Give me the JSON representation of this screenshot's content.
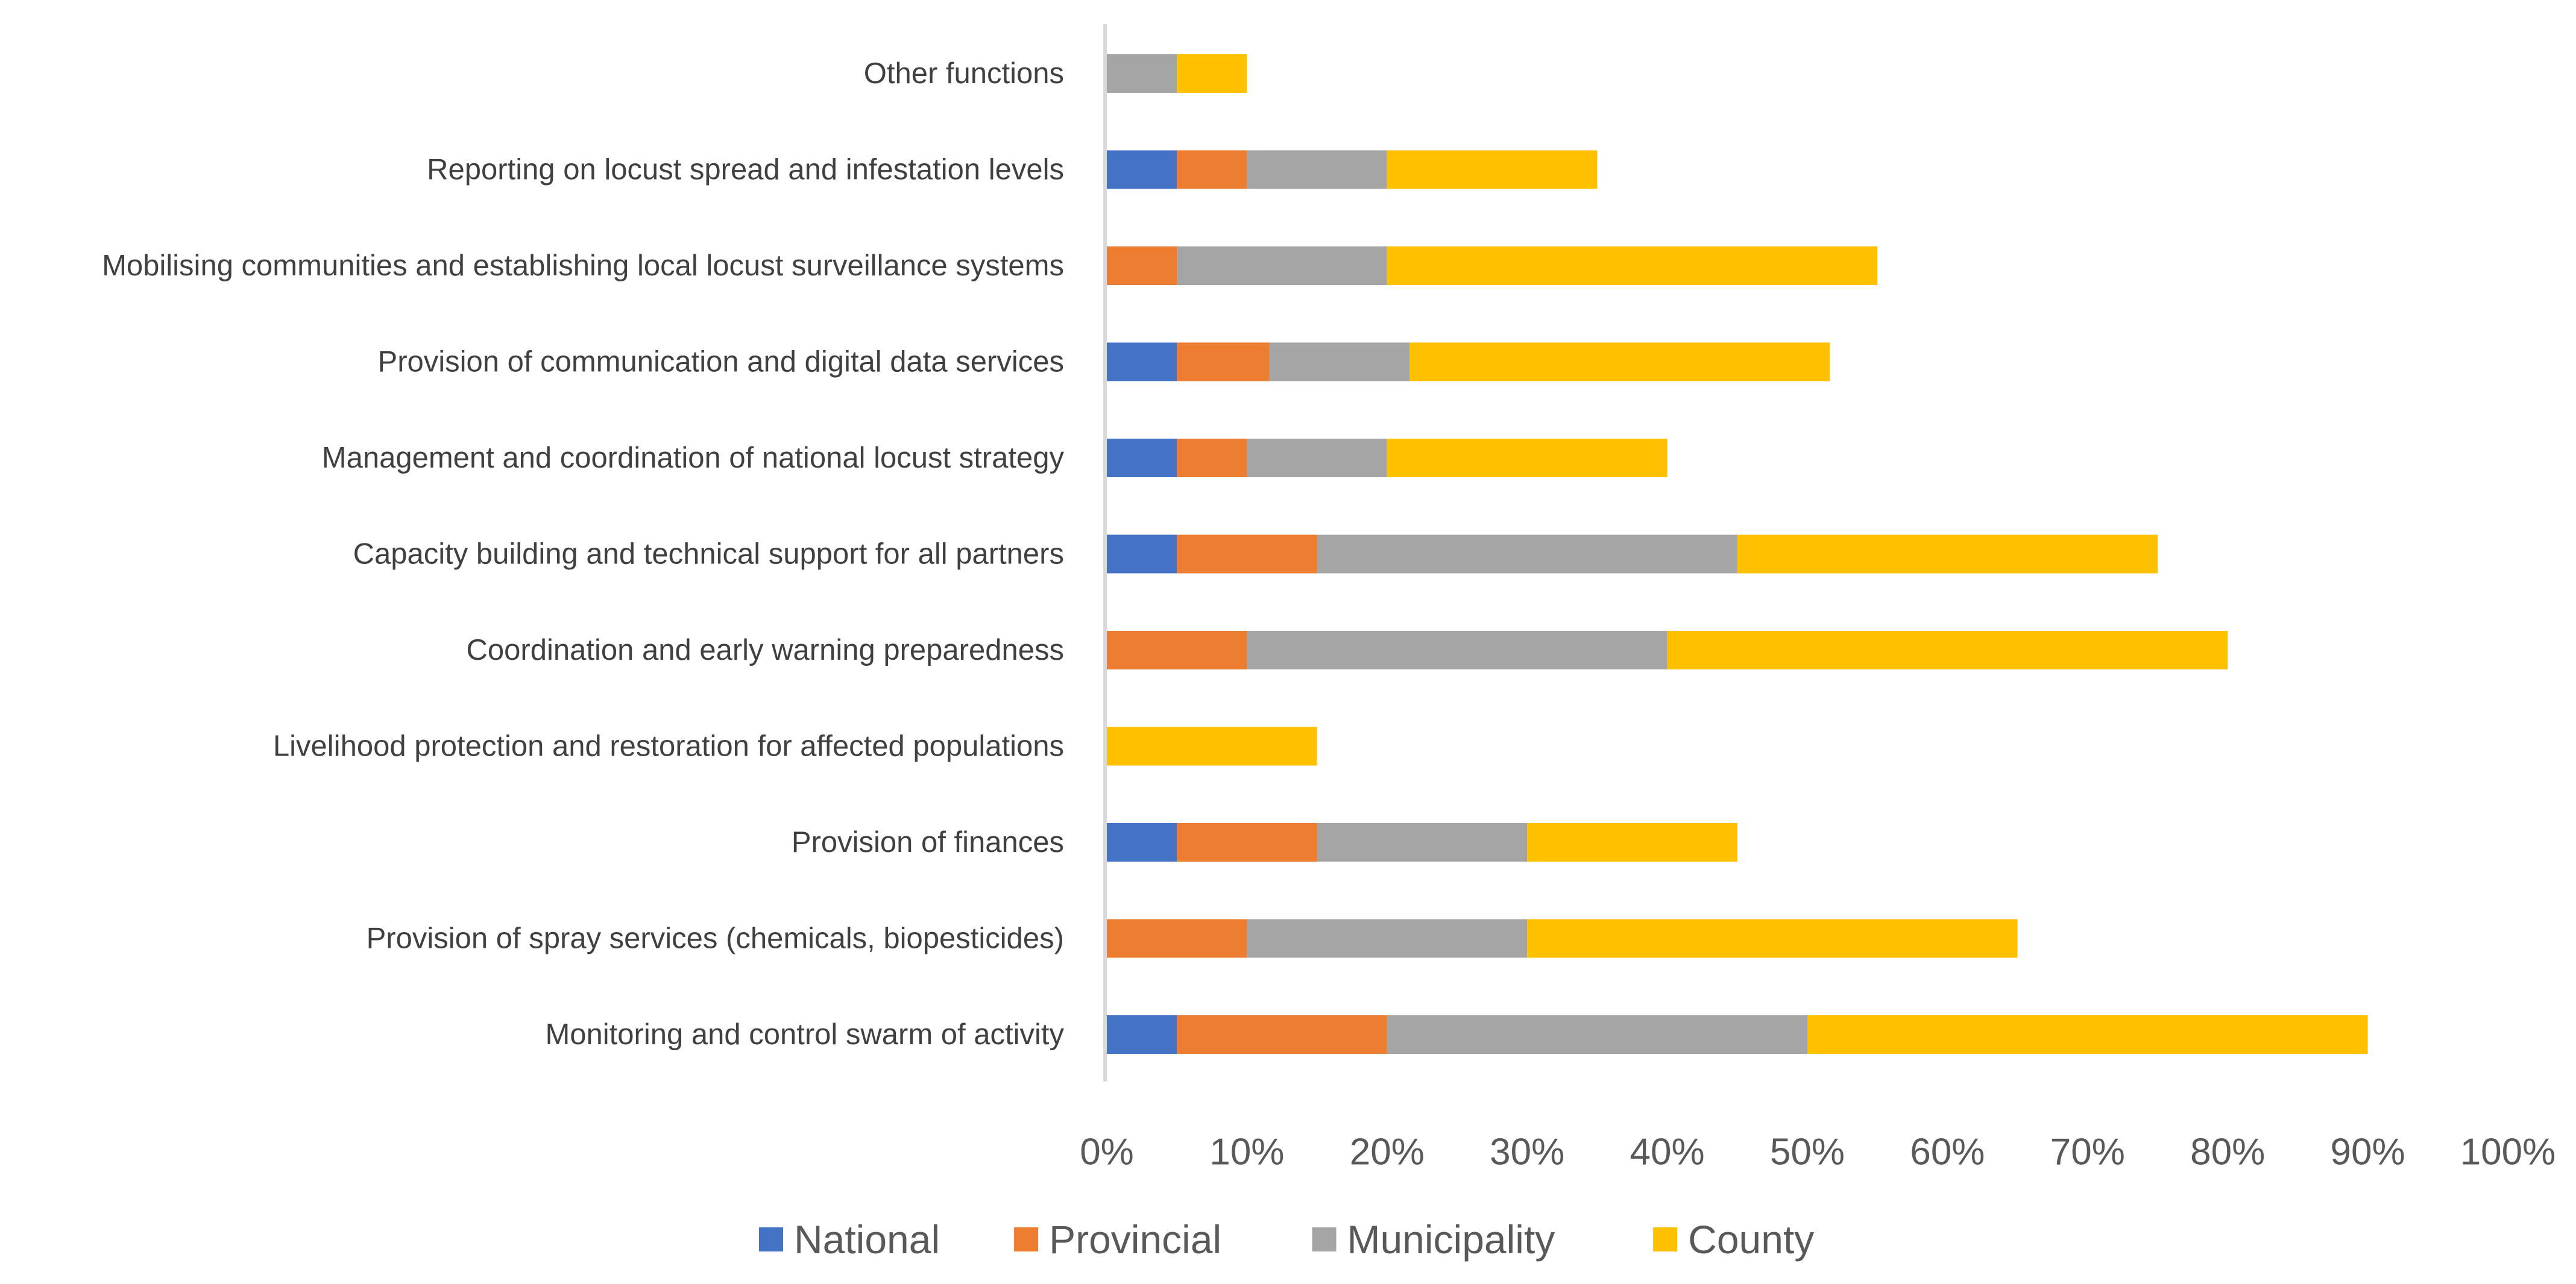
{
  "chart_data": {
    "type": "bar",
    "orientation": "horizontal",
    "stacked": true,
    "title": "",
    "xlabel": "",
    "ylabel": "",
    "xlim": [
      0,
      100
    ],
    "x_ticks": [
      0,
      10,
      20,
      30,
      40,
      50,
      60,
      70,
      80,
      90,
      100
    ],
    "x_tick_labels": [
      "0%",
      "10%",
      "20%",
      "30%",
      "40%",
      "50%",
      "60%",
      "70%",
      "80%",
      "90%",
      "100%"
    ],
    "grid": false,
    "legend_position": "bottom",
    "categories": [
      "Other functions",
      "Reporting on locust spread and infestation levels",
      "Mobilising communities and establishing local locust surveillance systems",
      "Provision of communication and digital data services",
      "Management and coordination of national locust  strategy",
      "Capacity building and technical support for all partners",
      "Coordination and early warning preparedness",
      "Livelihood protection and restoration for affected populations",
      "Provision of finances",
      "Provision of spray services (chemicals, biopesticides)",
      "Monitoring and control swarm of activity"
    ],
    "series": [
      {
        "name": "National",
        "color": "#4472C4",
        "values": [
          0,
          5,
          0,
          5,
          5,
          5,
          0,
          0,
          5,
          0,
          5
        ]
      },
      {
        "name": "Provincial",
        "color": "#ED7D31",
        "values": [
          0,
          5,
          5,
          6.6,
          5,
          10,
          10,
          0,
          10,
          10,
          15
        ]
      },
      {
        "name": "Municipality",
        "color": "#A5A5A5",
        "values": [
          5,
          10,
          15,
          10,
          10,
          30,
          30,
          0,
          15,
          20,
          30
        ]
      },
      {
        "name": "County",
        "color": "#FFC000",
        "values": [
          5,
          15,
          35,
          30,
          20,
          30,
          40,
          15,
          15,
          35,
          40
        ]
      }
    ]
  }
}
